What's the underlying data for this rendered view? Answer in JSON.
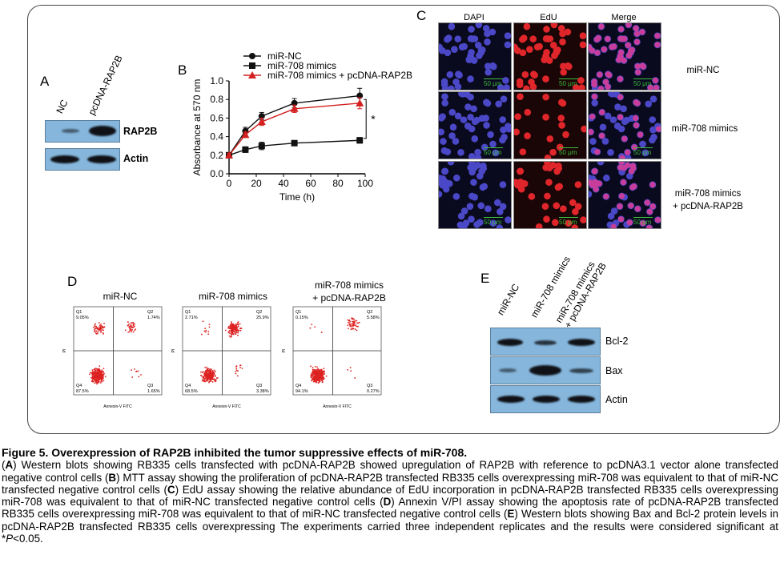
{
  "panelA": {
    "letter": "A",
    "lanes": [
      "NC",
      "pcDNA-RAP2B"
    ],
    "rows": [
      "RAP2B",
      "Actin"
    ]
  },
  "panelB": {
    "letter": "B",
    "legend": [
      "miR-NC",
      "miR-708 mimics",
      "miR-708 mimics + pcDNA-RAP2B"
    ],
    "significance": "*"
  },
  "chart_data": {
    "type": "line",
    "xlabel": "Time (h)",
    "ylabel": "Absorbance at 570 nm",
    "xlim": [
      0,
      100
    ],
    "ylim": [
      0,
      1.0
    ],
    "xticks": [
      0,
      20,
      40,
      60,
      80,
      100
    ],
    "yticks": [
      0,
      0.2,
      0.4,
      0.6,
      0.8,
      1.0
    ],
    "x": [
      0,
      12,
      24,
      48,
      96
    ],
    "series": [
      {
        "name": "miR-NC",
        "marker": "circle",
        "color": "#111111",
        "values": [
          0.2,
          0.46,
          0.62,
          0.76,
          0.84
        ],
        "errors": [
          0.02,
          0.04,
          0.04,
          0.05,
          0.08
        ]
      },
      {
        "name": "miR-708 mimics",
        "marker": "square",
        "color": "#111111",
        "values": [
          0.2,
          0.26,
          0.3,
          0.33,
          0.36
        ],
        "errors": [
          0.02,
          0.03,
          0.04,
          0.02,
          0.03
        ]
      },
      {
        "name": "miR-708 mimics + pcDNA-RAP2B",
        "marker": "triangle",
        "color": "#d42020",
        "values": [
          0.2,
          0.42,
          0.56,
          0.7,
          0.76
        ],
        "errors": [
          0.02,
          0.03,
          0.04,
          0.04,
          0.06
        ]
      }
    ]
  },
  "panelC": {
    "letter": "C",
    "columns": [
      "DAPI",
      "EdU",
      "Merge"
    ],
    "rows": [
      {
        "label_lines": [
          "miR-NC"
        ]
      },
      {
        "label_lines": [
          "miR-708 mimics"
        ]
      },
      {
        "label_lines": [
          "miR-708 mimics",
          "+ pcDNA-RAP2B"
        ]
      }
    ],
    "scale_text": "50 μm"
  },
  "panelD": {
    "letter": "D",
    "plots": [
      {
        "title_lines": [
          "miR-NC"
        ],
        "q1": "9.05%",
        "q2": "1.74%",
        "q3": "1.65%",
        "q4": "87.5%"
      },
      {
        "title_lines": [
          "miR-708 mimics"
        ],
        "q1": "2.71%",
        "q2": "25.9%",
        "q3": "3.38%",
        "q4": "68.5%"
      },
      {
        "title_lines": [
          "miR-708 mimics",
          "+ pcDNA-RAP2B"
        ],
        "q1": "0.15%",
        "q2": "5.58%",
        "q3": "0.27%",
        "q4": "94.1%"
      }
    ],
    "quad_names": [
      "Q1",
      "Q2",
      "Q3",
      "Q4"
    ],
    "xaxis": "Annexin-V FITC",
    "yaxis": "PI"
  },
  "panelE": {
    "letter": "E",
    "lanes": [
      "miR-NC",
      "miR-708 mimics",
      "miR-708 mimics",
      "+ pcDNA-RAP2B"
    ],
    "rows": [
      "Bcl-2",
      "Bax",
      "Actin"
    ]
  },
  "caption": {
    "title": "Figure 5. Overexpression of RAP2B inhibited the tumor suppressive effects of miR-708.",
    "body": [
      {
        "t": "(",
        "b": false
      },
      {
        "t": "A",
        "b": true
      },
      {
        "t": ") Western blots showing RB335 cells transfected with pcDNA-RAP2B showed upregulation of RAP2B with reference to pcDNA3.1 vector alone transfected negative control cells (",
        "b": false
      },
      {
        "t": "B",
        "b": true
      },
      {
        "t": ") MTT assay showing the proliferation of pcDNA-RAP2B transfected RB335 cells overexpressing miR-708 was equivalent to that of miR-NC transfected negative control cells (",
        "b": false
      },
      {
        "t": "C",
        "b": true
      },
      {
        "t": ") EdU assay showing the relative abundance of EdU incorporation in pcDNA-RAP2B transfected RB335 cells overexpressing miR-708 was equivalent to that of miR-NC transfected negative control cells (",
        "b": false
      },
      {
        "t": "D",
        "b": true
      },
      {
        "t": ") Annexin V/PI assay showing the apoptosis rate of pcDNA-RAP2B transfected RB335 cells overexpressing miR-708 was equivalent to that of miR-NC transfected negative control cells (",
        "b": false
      },
      {
        "t": "E",
        "b": true
      },
      {
        "t": ") Western blots showing Bax and Bcl-2 protein levels in pcDNA-RAP2B transfected RB335 cells overexpressing The experiments carried three independent replicates and the results were considered significant at *",
        "b": false
      },
      {
        "t": "P",
        "b": false,
        "i": true
      },
      {
        "t": "<0.05.",
        "b": false
      }
    ]
  }
}
